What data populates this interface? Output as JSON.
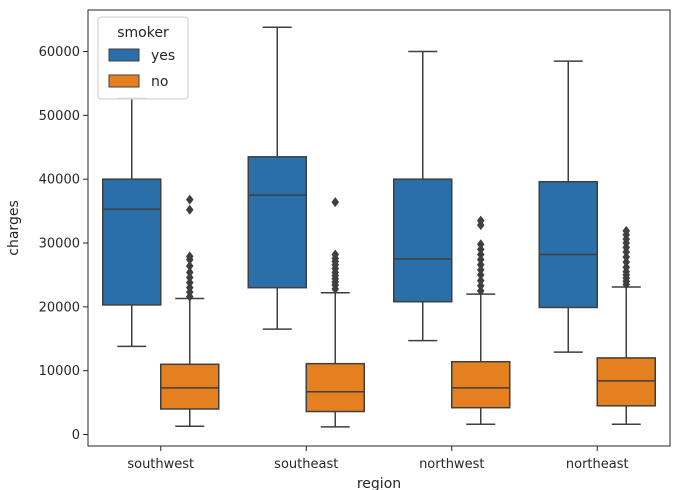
{
  "chart_data": {
    "type": "box",
    "title": "",
    "xlabel": "region",
    "ylabel": "charges",
    "ylim": [
      -1800,
      66500
    ],
    "yticks": [
      0,
      10000,
      20000,
      30000,
      40000,
      50000,
      60000
    ],
    "ytick_labels": [
      "0",
      "10000",
      "20000",
      "30000",
      "40000",
      "50000",
      "60000"
    ],
    "categories": [
      "southwest",
      "southeast",
      "northwest",
      "northeast"
    ],
    "grid": false,
    "legend": {
      "title": "smoker",
      "placement": "top-left"
    },
    "series": [
      {
        "name": "yes",
        "color": "#2b6fa8",
        "boxes": [
          {
            "whisker_low": 13800,
            "q1": 20300,
            "median": 35300,
            "q3": 40000,
            "whisker_high": 52700,
            "outliers": []
          },
          {
            "whisker_low": 16500,
            "q1": 23000,
            "median": 37500,
            "q3": 43500,
            "whisker_high": 63800,
            "outliers": []
          },
          {
            "whisker_low": 14700,
            "q1": 20800,
            "median": 27500,
            "q3": 40000,
            "whisker_high": 60000,
            "outliers": []
          },
          {
            "whisker_low": 12900,
            "q1": 19900,
            "median": 28200,
            "q3": 39600,
            "whisker_high": 58500,
            "outliers": []
          }
        ]
      },
      {
        "name": "no",
        "color": "#e4801f",
        "boxes": [
          {
            "whisker_low": 1300,
            "q1": 4000,
            "median": 7300,
            "q3": 11000,
            "whisker_high": 21300,
            "outliers": [
              21600,
              22300,
              23000,
              23800,
              24600,
              25400,
              26400,
              27400,
              27900,
              35200,
              36800
            ]
          },
          {
            "whisker_low": 1200,
            "q1": 3600,
            "median": 6700,
            "q3": 11100,
            "whisker_high": 22200,
            "outliers": [
              22800,
              23400,
              23900,
              24400,
              24900,
              25400,
              26000,
              26600,
              27100,
              27600,
              28200,
              36400
            ]
          },
          {
            "whisker_low": 1600,
            "q1": 4200,
            "median": 7300,
            "q3": 11400,
            "whisker_high": 22000,
            "outliers": [
              22500,
              23300,
              24100,
              25000,
              25800,
              26600,
              27400,
              28200,
              29000,
              29800,
              32800,
              33500
            ]
          },
          {
            "whisker_low": 1600,
            "q1": 4500,
            "median": 8400,
            "q3": 12000,
            "whisker_high": 23100,
            "outliers": [
              23500,
              24000,
              24500,
              25000,
              25500,
              26200,
              27000,
              27800,
              28600,
              29300,
              30000,
              30600,
              31300,
              31900
            ]
          }
        ]
      }
    ]
  }
}
